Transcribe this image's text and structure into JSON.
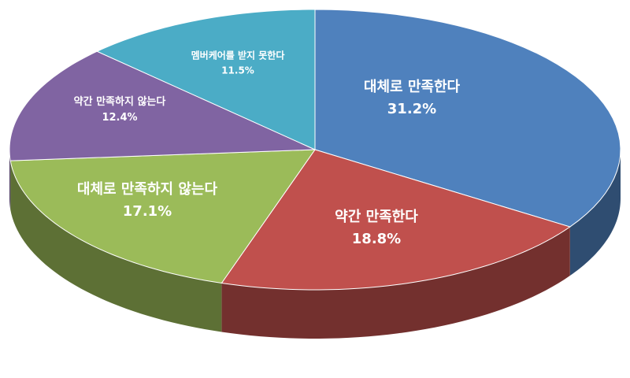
{
  "chart_data": {
    "type": "pie3d",
    "categories": [
      "대체로 만족한다",
      "약간 만족한다",
      "대체로 만족하지 않는다",
      "약간 만족하지 않는다",
      "멤버케어를 받지 못한다"
    ],
    "values": [
      31.2,
      18.8,
      17.1,
      12.4,
      11.5
    ],
    "value_labels": [
      "31.2%",
      "18.8%",
      "17.1%",
      "12.4%",
      "11.5%"
    ],
    "colors": [
      "#4f81bd",
      "#c0504d",
      "#9bbb59",
      "#8064a2",
      "#4bacc6"
    ]
  }
}
